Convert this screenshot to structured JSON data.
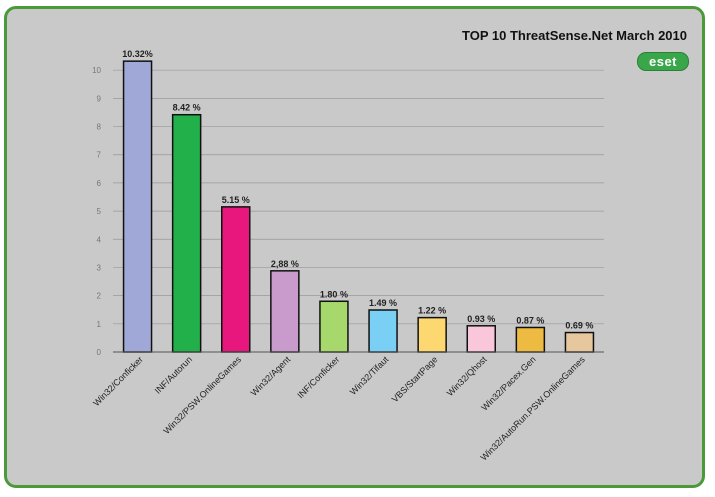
{
  "chart_data": {
    "type": "bar",
    "title": "TOP 10 ThreatSense.Net March 2010",
    "logo_text": "eset",
    "categories": [
      "Win32/Conficker",
      "INF/Autorun",
      "Win32/PSW.OnlineGames",
      "Win32/Agent",
      "INF/Conficker",
      "Win32/Tifaut",
      "VBS/StartPage",
      "Win32/Qhost",
      "Win32/Pacex.Gen",
      "Win32/AutoRun.PSW.OnlineGames"
    ],
    "values": [
      10.32,
      8.42,
      5.15,
      2.88,
      1.8,
      1.49,
      1.22,
      0.93,
      0.87,
      0.69
    ],
    "value_labels": [
      "10.32%",
      "8.42 %",
      "5.15 %",
      "2,88 %",
      "1.80 %",
      "1.49 %",
      "1.22 %",
      "0.93 %",
      "0.87 %",
      "0.69 %"
    ],
    "colors": [
      "#9fa8d6",
      "#22b04a",
      "#e8177e",
      "#c99bcc",
      "#a6d86c",
      "#7ad0f4",
      "#fdd870",
      "#f9c6da",
      "#eebb42",
      "#e6c79e"
    ],
    "yticks": [
      "0",
      "1",
      "2",
      "3",
      "4",
      "5",
      "6",
      "7",
      "8",
      "9",
      "10"
    ],
    "ylim": [
      0,
      11
    ],
    "grid": true,
    "xlabel": "",
    "ylabel": ""
  }
}
